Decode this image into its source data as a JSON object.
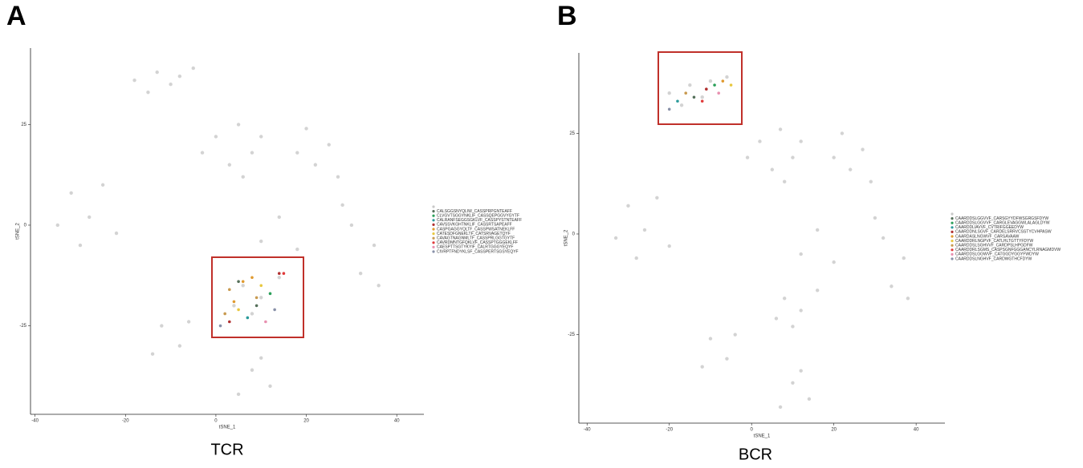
{
  "chart_data": [
    {
      "type": "scatter",
      "panel": "A",
      "caption": "TCR",
      "xlabel": "tSNE_1",
      "ylabel": "tSNE_2",
      "xlim": [
        -41,
        46
      ],
      "ylim": [
        -47,
        44
      ],
      "xticks": [
        -40,
        -20,
        0,
        20,
        40
      ],
      "yticks": [
        -25,
        0,
        25
      ],
      "series": [
        {
          "color": "#c8c8c8",
          "x": [
            -18,
            -13,
            -8,
            -15,
            -10,
            -5,
            0,
            5,
            8,
            3,
            10,
            -3,
            6,
            20,
            25,
            22,
            27,
            18,
            -32,
            -28,
            -25,
            -30,
            -22,
            -35,
            30,
            35,
            32,
            28,
            36,
            -12,
            -8,
            -14,
            -6,
            8,
            12,
            5,
            10,
            6,
            10,
            14,
            8,
            4,
            14,
            10,
            18
          ],
          "values": [
            36,
            38,
            37,
            33,
            35,
            39,
            22,
            25,
            18,
            15,
            22,
            18,
            12,
            24,
            20,
            15,
            12,
            18,
            8,
            2,
            10,
            -5,
            -2,
            0,
            0,
            -5,
            -12,
            5,
            -15,
            -25,
            -30,
            -32,
            -24,
            -36,
            -40,
            -42,
            -33,
            -15,
            -18,
            -13,
            -22,
            -20,
            2,
            -4,
            -6
          ]
        },
        {
          "name": "CALSGGSNYQLIW_CASSPRPGNTEAFF",
          "color": "#55705a",
          "x": [
            5,
            9
          ],
          "values": [
            -14,
            -20
          ]
        },
        {
          "name": "CLVGVTSGGYNKLIF_CASSQEPGGVYGYTF",
          "color": "#2ca05a",
          "x": [
            12
          ],
          "values": [
            -17
          ]
        },
        {
          "name": "CALRANFSEGGSGKLVF_CASSPYSTNTEAFF",
          "color": "#2a9a9a",
          "x": [
            7
          ],
          "values": [
            -23
          ]
        },
        {
          "name": "CAVSSVKGHTNKLIF_CASSRTSAPEAFF",
          "color": "#b03030",
          "x": [
            14,
            3
          ],
          "values": [
            -12,
            -24
          ]
        },
        {
          "name": "CASPGAGGYQLTF_CASSPWSATNEKLFF",
          "color": "#e09a30",
          "x": [
            6,
            8,
            4
          ],
          "values": [
            -14,
            -13,
            -19
          ]
        },
        {
          "name": "CATESDFGNEKLTF_CATSRVAGETQYF",
          "color": "#e8c840",
          "x": [
            10,
            5
          ],
          "values": [
            -15,
            -21
          ]
        },
        {
          "name": "CAVAGTNAGNMLTF_CASSPRLGGTGYTF",
          "color": "#c89a50",
          "x": [
            3,
            9,
            2
          ],
          "values": [
            -16,
            -18,
            -22
          ]
        },
        {
          "name": "CAVRDMNTGFQKLVF_CASSPTGGGEKLFF",
          "color": "#e03a3a",
          "x": [
            15
          ],
          "values": [
            -12
          ]
        },
        {
          "name": "CAESPTTSGTYKYIF_CALRTGGGYEQYF",
          "color": "#e890b0",
          "x": [
            11
          ],
          "values": [
            -24
          ]
        },
        {
          "name": "CIVRPTFNDYKLSF_CASSPERTSGSYEQYF",
          "color": "#8890a8",
          "x": [
            1,
            13
          ],
          "values": [
            -25,
            -21
          ]
        }
      ]
    },
    {
      "type": "scatter",
      "panel": "B",
      "caption": "BCR",
      "xlabel": "tSNE_1",
      "ylabel": "tSNE_2",
      "xlim": [
        -42,
        47
      ],
      "ylim": [
        -47,
        45
      ],
      "xticks": [
        -40,
        -20,
        0,
        20,
        40
      ],
      "yticks": [
        -25,
        0,
        25
      ],
      "series": [
        {
          "color": "#c8c8c8",
          "x": [
            -20,
            -15,
            -10,
            -17,
            -12,
            -6,
            2,
            7,
            10,
            5,
            12,
            -1,
            8,
            22,
            27,
            24,
            29,
            20,
            -30,
            -26,
            -23,
            -28,
            -20,
            -33,
            32,
            37,
            34,
            30,
            38,
            -10,
            -6,
            -12,
            -4,
            10,
            14,
            7,
            12,
            8,
            12,
            16,
            10,
            6,
            16,
            12,
            20
          ],
          "values": [
            35,
            37,
            38,
            32,
            34,
            39,
            23,
            26,
            19,
            16,
            23,
            19,
            13,
            25,
            21,
            16,
            13,
            19,
            7,
            1,
            9,
            -6,
            -3,
            -1,
            -1,
            -6,
            -13,
            4,
            -16,
            -26,
            -31,
            -33,
            -25,
            -37,
            -41,
            -43,
            -34,
            -16,
            -19,
            -14,
            -23,
            -21,
            1,
            -5,
            -7
          ]
        },
        {
          "name": "CAARDDSLGGVVF_CARSGYYDFWSGRGSFDYW",
          "color": "#55705a",
          "x": [
            -14
          ],
          "values": [
            34
          ]
        },
        {
          "name": "CAARDDSLGGVVF_CARGLEVAGGWLALAGLDYW",
          "color": "#2ca05a",
          "x": [
            -9
          ],
          "values": [
            37
          ]
        },
        {
          "name": "CAARDDLIAVVF_CVTRIFGGEEDYW",
          "color": "#2a9a9a",
          "x": [
            -18
          ],
          "values": [
            33
          ]
        },
        {
          "name": "CAARDDNLSGVF_CARDELSRRVCSSTYCVHPASW",
          "color": "#b03030",
          "x": [
            -11
          ],
          "values": [
            36
          ]
        },
        {
          "name": "CAARDASLNGWVF_CARSAVAAW",
          "color": "#e09a30",
          "x": [
            -7
          ],
          "values": [
            38
          ]
        },
        {
          "name": "CAARDDRLNGPVF_CATLHLTGTTYFDYW",
          "color": "#e8c840",
          "x": [
            -5
          ],
          "values": [
            37
          ]
        },
        {
          "name": "CAARDDSLSGHVVF_CARDPSLHPGDFW",
          "color": "#c89a50",
          "x": [
            -16
          ],
          "values": [
            35
          ]
        },
        {
          "name": "CAARDDRLSGMS_CASPSGNFGGGANCYLRNAGMDVW",
          "color": "#e03a3a",
          "x": [
            -12
          ],
          "values": [
            33
          ]
        },
        {
          "name": "CAARDDSLGGWVF_CATGGDYGGYFWDYW",
          "color": "#e890b0",
          "x": [
            -8
          ],
          "values": [
            35
          ]
        },
        {
          "name": "CAARDDSLNGHVF_CARDWGTHCFDYW",
          "color": "#8890a8",
          "x": [
            -20
          ],
          "values": [
            31
          ]
        }
      ]
    }
  ]
}
